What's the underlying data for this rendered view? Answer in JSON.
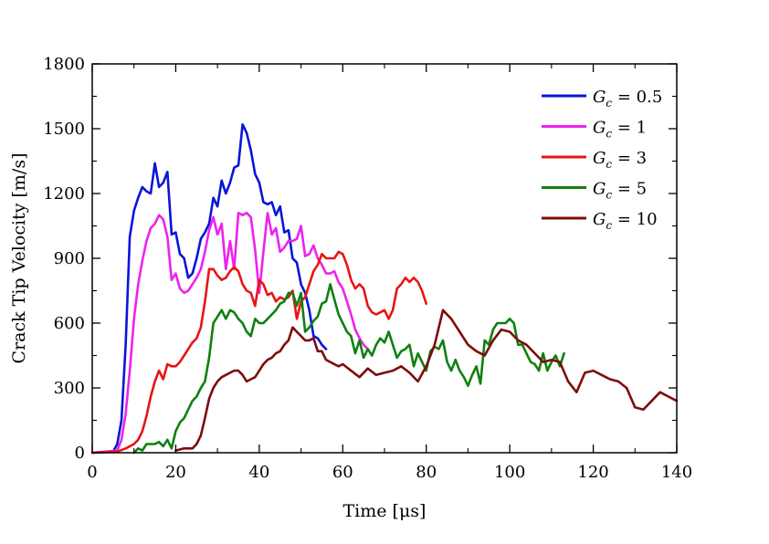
{
  "chart_data": {
    "type": "line",
    "xlabel": "Time [μs]",
    "ylabel": "Crack Tip Velocity [m/s]",
    "xlim": [
      0,
      140
    ],
    "ylim": [
      0,
      1800
    ],
    "xticks": [
      0,
      20,
      40,
      60,
      80,
      100,
      120,
      140
    ],
    "yticks": [
      0,
      300,
      600,
      900,
      1200,
      1500,
      1800
    ],
    "xtick_labels": [
      "0",
      "20",
      "40",
      "60",
      "80",
      "100",
      "120",
      "140"
    ],
    "ytick_labels": [
      "0",
      "300",
      "600",
      "900",
      "1200",
      "1500",
      "1800"
    ],
    "grid": false,
    "legend_position": "top-right",
    "series": [
      {
        "name": "G_c = 0.5",
        "legend_symbol": "G",
        "legend_sub": "c",
        "legend_value": " = 0.5",
        "color": "#0a14d8",
        "x": [
          0,
          5,
          6,
          7,
          8,
          9,
          10,
          11,
          12,
          13,
          14,
          15,
          16,
          17,
          18,
          19,
          20,
          21,
          22,
          23,
          24,
          25,
          26,
          27,
          28,
          29,
          30,
          31,
          32,
          33,
          34,
          35,
          36,
          37,
          38,
          39,
          40,
          41,
          42,
          43,
          44,
          45,
          46,
          47,
          48,
          49,
          50,
          51,
          52,
          53,
          54,
          55,
          56
        ],
        "y": [
          0,
          5,
          40,
          150,
          500,
          1000,
          1120,
          1180,
          1230,
          1210,
          1200,
          1340,
          1230,
          1250,
          1300,
          1010,
          1020,
          920,
          900,
          810,
          830,
          900,
          990,
          1020,
          1060,
          1180,
          1140,
          1260,
          1200,
          1250,
          1320,
          1330,
          1520,
          1480,
          1400,
          1290,
          1250,
          1160,
          1150,
          1160,
          1100,
          1140,
          1020,
          1030,
          900,
          880,
          780,
          740,
          660,
          540,
          530,
          500,
          480
        ]
      },
      {
        "name": "G_c = 1",
        "legend_symbol": "G",
        "legend_sub": "c",
        "legend_value": " = 1",
        "color": "#ee22ee",
        "x": [
          0,
          6,
          7,
          8,
          9,
          10,
          11,
          12,
          13,
          14,
          15,
          16,
          17,
          18,
          19,
          20,
          21,
          22,
          23,
          24,
          25,
          26,
          27,
          28,
          29,
          30,
          31,
          32,
          33,
          34,
          35,
          36,
          37,
          38,
          39,
          40,
          41,
          42,
          43,
          44,
          45,
          46,
          47,
          48,
          49,
          50,
          51,
          52,
          53,
          54,
          55,
          56,
          57,
          58,
          59,
          60,
          61,
          62,
          63,
          64,
          65,
          66
        ],
        "y": [
          0,
          10,
          60,
          180,
          380,
          620,
          780,
          890,
          980,
          1040,
          1060,
          1100,
          1080,
          1000,
          800,
          830,
          760,
          740,
          750,
          780,
          810,
          850,
          930,
          1030,
          1090,
          1010,
          1060,
          850,
          980,
          850,
          1110,
          1100,
          1110,
          1090,
          940,
          740,
          930,
          1110,
          1010,
          1040,
          930,
          950,
          980,
          980,
          990,
          1050,
          910,
          920,
          960,
          900,
          870,
          830,
          830,
          840,
          790,
          760,
          700,
          640,
          570,
          530,
          500,
          480
        ]
      },
      {
        "name": "G_c = 3",
        "legend_symbol": "G",
        "legend_sub": "c",
        "legend_value": " = 3",
        "color": "#e81414",
        "x": [
          0,
          6,
          8,
          10,
          11,
          12,
          13,
          14,
          15,
          16,
          17,
          18,
          19,
          20,
          21,
          22,
          23,
          24,
          25,
          26,
          27,
          28,
          29,
          30,
          31,
          32,
          33,
          34,
          35,
          36,
          37,
          38,
          39,
          40,
          41,
          42,
          43,
          44,
          45,
          46,
          47,
          48,
          49,
          50,
          51,
          52,
          53,
          54,
          55,
          56,
          57,
          58,
          59,
          60,
          61,
          62,
          63,
          64,
          65,
          66,
          67,
          68,
          69,
          70,
          71,
          72,
          73,
          74,
          75,
          76,
          77,
          78,
          79,
          80
        ],
        "y": [
          0,
          5,
          20,
          40,
          60,
          100,
          170,
          260,
          330,
          380,
          340,
          410,
          400,
          400,
          420,
          450,
          480,
          510,
          530,
          580,
          700,
          850,
          850,
          820,
          800,
          810,
          840,
          860,
          840,
          780,
          750,
          740,
          680,
          800,
          780,
          730,
          740,
          700,
          720,
          710,
          720,
          750,
          620,
          700,
          720,
          780,
          840,
          870,
          920,
          900,
          900,
          900,
          930,
          920,
          870,
          800,
          760,
          780,
          760,
          680,
          650,
          640,
          650,
          660,
          620,
          660,
          760,
          780,
          810,
          790,
          810,
          790,
          750,
          690
        ]
      },
      {
        "name": "G_c = 5",
        "legend_symbol": "G",
        "legend_sub": "c",
        "legend_value": " = 5",
        "color": "#0f8010",
        "x": [
          10,
          11,
          12,
          13,
          14,
          15,
          16,
          17,
          18,
          19,
          20,
          21,
          22,
          23,
          24,
          25,
          26,
          27,
          28,
          29,
          30,
          31,
          32,
          33,
          34,
          35,
          36,
          37,
          38,
          39,
          40,
          41,
          42,
          43,
          44,
          45,
          46,
          47,
          48,
          49,
          50,
          51,
          52,
          53,
          54,
          55,
          56,
          57,
          58,
          59,
          60,
          61,
          62,
          63,
          64,
          65,
          66,
          67,
          68,
          69,
          70,
          71,
          72,
          73,
          74,
          75,
          76,
          77,
          78,
          79,
          80,
          81,
          82,
          83,
          84,
          85,
          86,
          87,
          88,
          89,
          90,
          91,
          92,
          93,
          94,
          95,
          96,
          97,
          98,
          99,
          100,
          101,
          102,
          103,
          104,
          105,
          106,
          107,
          108,
          109,
          110,
          111,
          112,
          113
        ],
        "y": [
          0,
          20,
          10,
          40,
          40,
          40,
          50,
          30,
          60,
          20,
          100,
          140,
          160,
          200,
          240,
          260,
          300,
          330,
          440,
          600,
          630,
          660,
          620,
          660,
          650,
          620,
          600,
          560,
          540,
          620,
          600,
          600,
          620,
          640,
          660,
          690,
          700,
          740,
          740,
          680,
          740,
          560,
          580,
          610,
          630,
          690,
          700,
          780,
          710,
          640,
          600,
          560,
          540,
          460,
          520,
          440,
          480,
          450,
          500,
          530,
          510,
          560,
          500,
          440,
          470,
          480,
          500,
          400,
          460,
          420,
          380,
          470,
          490,
          480,
          520,
          420,
          380,
          430,
          380,
          350,
          310,
          360,
          400,
          320,
          520,
          500,
          570,
          600,
          600,
          600,
          620,
          600,
          500,
          500,
          460,
          420,
          410,
          380,
          460,
          380,
          420,
          450,
          400,
          460
        ]
      },
      {
        "name": "G_c = 10",
        "legend_symbol": "G",
        "legend_sub": "c",
        "legend_value": " = 10",
        "color": "#7d0c0c",
        "x": [
          20,
          22,
          24,
          25,
          26,
          27,
          28,
          29,
          30,
          31,
          32,
          33,
          34,
          35,
          36,
          37,
          38,
          39,
          40,
          41,
          42,
          43,
          44,
          45,
          46,
          47,
          48,
          49,
          50,
          51,
          52,
          53,
          54,
          55,
          56,
          57,
          58,
          59,
          60,
          62,
          64,
          66,
          68,
          70,
          72,
          74,
          76,
          78,
          80,
          82,
          84,
          86,
          88,
          90,
          92,
          94,
          96,
          98,
          100,
          102,
          104,
          106,
          108,
          110,
          112,
          114,
          116,
          118,
          120,
          122,
          124,
          126,
          128,
          130,
          132,
          134,
          136,
          138,
          140
        ],
        "y": [
          10,
          20,
          20,
          40,
          80,
          160,
          250,
          300,
          330,
          350,
          360,
          370,
          380,
          380,
          360,
          330,
          340,
          350,
          380,
          410,
          430,
          440,
          460,
          470,
          500,
          520,
          580,
          560,
          540,
          520,
          520,
          530,
          470,
          470,
          430,
          420,
          410,
          400,
          410,
          380,
          350,
          390,
          360,
          370,
          380,
          400,
          370,
          330,
          400,
          500,
          660,
          620,
          560,
          500,
          470,
          450,
          520,
          570,
          560,
          520,
          500,
          460,
          420,
          430,
          420,
          330,
          280,
          370,
          380,
          360,
          340,
          330,
          300,
          210,
          200,
          240,
          280,
          260,
          240
        ]
      }
    ]
  }
}
